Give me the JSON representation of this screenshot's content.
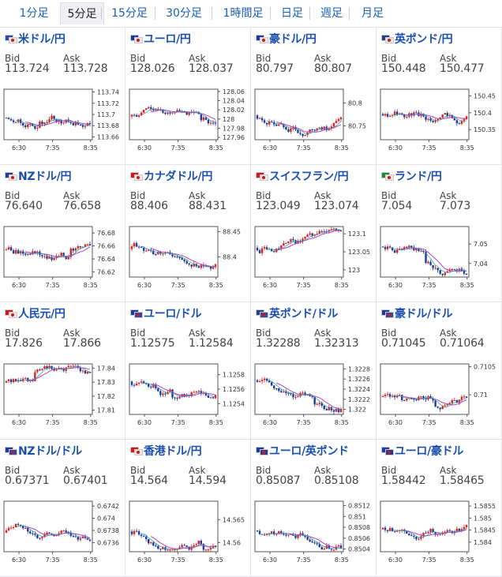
{
  "tabs": [
    {
      "label": "1分足",
      "active": false
    },
    {
      "label": "5分足",
      "active": true
    },
    {
      "label": "15分足",
      "active": false
    },
    {
      "label": "30分足",
      "active": false
    },
    {
      "label": "1時間足",
      "active": false
    },
    {
      "label": "日足",
      "active": false
    },
    {
      "label": "週足",
      "active": false
    },
    {
      "label": "月足",
      "active": false
    }
  ],
  "labels": {
    "bid": "Bid",
    "ask": "Ask"
  },
  "pairs": [
    {
      "name": "米ドル/円",
      "flags": [
        "#2c4aa8",
        "#e8e8e8"
      ],
      "bid": "113.724",
      "ask": "113.728",
      "chart_data": {
        "type": "candlestick",
        "x_ticks": [
          "6:30",
          "7:35",
          "8:35"
        ],
        "y_ticks": [
          "113.74",
          "113.72",
          "113.7",
          "113.68",
          "113.66"
        ],
        "ylim": [
          113.655,
          113.745
        ]
      }
    },
    {
      "name": "ユーロ/円",
      "flags": [
        "#1e3a9c",
        "#e8e8e8"
      ],
      "bid": "128.026",
      "ask": "128.037",
      "chart_data": {
        "type": "candlestick",
        "x_ticks": [
          "6:30",
          "7:35",
          "8:35"
        ],
        "y_ticks": [
          "128.06",
          "128.04",
          "128.02",
          "128",
          "127.98",
          "127.96"
        ],
        "ylim": [
          127.955,
          128.065
        ]
      }
    },
    {
      "name": "豪ドル/円",
      "flags": [
        "#1e3a9c",
        "#e8e8e8"
      ],
      "bid": "80.797",
      "ask": "80.807",
      "chart_data": {
        "type": "candlestick",
        "x_ticks": [
          "6:30",
          "7:35",
          "8:35"
        ],
        "y_ticks": [
          "80.8",
          "80.75"
        ],
        "ylim": [
          80.72,
          80.83
        ]
      }
    },
    {
      "name": "英ポンド/円",
      "flags": [
        "#2c3c8c",
        "#e8e8e8"
      ],
      "bid": "150.448",
      "ask": "150.477",
      "chart_data": {
        "type": "candlestick",
        "x_ticks": [
          "6:30",
          "7:35",
          "8:35"
        ],
        "y_ticks": [
          "150.45",
          "150.4",
          "150.35"
        ],
        "ylim": [
          150.32,
          150.47
        ]
      }
    },
    {
      "name": "NZドル/円",
      "flags": [
        "#1e3a9c",
        "#e8e8e8"
      ],
      "bid": "76.640",
      "ask": "76.658",
      "chart_data": {
        "type": "candlestick",
        "x_ticks": [
          "6:30",
          "7:35",
          "8:35"
        ],
        "y_ticks": [
          "76.68",
          "76.66",
          "76.64",
          "76.62"
        ],
        "ylim": [
          76.612,
          76.69
        ]
      }
    },
    {
      "name": "カナダドル/円",
      "flags": [
        "#d01818",
        "#e8e8e8"
      ],
      "bid": "88.406",
      "ask": "88.431",
      "chart_data": {
        "type": "candlestick",
        "x_ticks": [
          "6:30",
          "7:35",
          "8:35"
        ],
        "y_ticks": [
          "88.45",
          "88.4"
        ],
        "ylim": [
          88.36,
          88.46
        ]
      }
    },
    {
      "name": "スイスフラン/円",
      "flags": [
        "#d01818",
        "#e8e8e8"
      ],
      "bid": "123.049",
      "ask": "123.074",
      "chart_data": {
        "type": "candlestick",
        "x_ticks": [
          "6:30",
          "7:35",
          "8:35"
        ],
        "y_ticks": [
          "123.1",
          "123.05",
          "123"
        ],
        "ylim": [
          122.98,
          123.12
        ]
      }
    },
    {
      "name": "ランド/円",
      "flags": [
        "#1a8a3a",
        "#e8e8e8"
      ],
      "bid": "7.054",
      "ask": "7.073",
      "chart_data": {
        "type": "candlestick",
        "x_ticks": [
          "6:30",
          "7:35",
          "8:35"
        ],
        "y_ticks": [
          "7.05",
          "7.04"
        ],
        "ylim": [
          7.033,
          7.059
        ]
      }
    },
    {
      "name": "人民元/円",
      "flags": [
        "#d01818",
        "#e8e8e8"
      ],
      "bid": "17.826",
      "ask": "17.866",
      "chart_data": {
        "type": "candlestick",
        "x_ticks": [
          "6:30",
          "7:35",
          "8:35"
        ],
        "y_ticks": [
          "17.84",
          "17.83",
          "17.82",
          "17.81"
        ],
        "ylim": [
          17.807,
          17.843
        ]
      }
    },
    {
      "name": "ユーロ/ドル",
      "flags": [
        "#1e3a9c",
        "#2c4aa8"
      ],
      "bid": "1.12575",
      "ask": "1.12584",
      "chart_data": {
        "type": "candlestick",
        "x_ticks": [
          "6:30",
          "7:35",
          "8:35"
        ],
        "y_ticks": [
          "1.1258",
          "1.1256",
          "1.1254"
        ],
        "ylim": [
          1.12525,
          1.12595
        ]
      }
    },
    {
      "name": "英ポンド/ドル",
      "flags": [
        "#2c3c8c",
        "#2c4aa8"
      ],
      "bid": "1.32288",
      "ask": "1.32313",
      "chart_data": {
        "type": "candlestick",
        "x_ticks": [
          "6:30",
          "7:35",
          "8:35"
        ],
        "y_ticks": [
          "1.3228",
          "1.3226",
          "1.3224",
          "1.3222",
          "1.322"
        ],
        "ylim": [
          1.3219,
          1.3229
        ]
      }
    },
    {
      "name": "豪ドル/ドル",
      "flags": [
        "#1e3a9c",
        "#2c4aa8"
      ],
      "bid": "0.71045",
      "ask": "0.71064",
      "chart_data": {
        "type": "candlestick",
        "x_ticks": [
          "6:30",
          "7:35",
          "8:35"
        ],
        "y_ticks": [
          "0.7105",
          "0.71"
        ],
        "ylim": [
          0.70965,
          0.71055
        ]
      }
    },
    {
      "name": "NZドル/ドル",
      "flags": [
        "#1e3a9c",
        "#2c4aa8"
      ],
      "bid": "0.67371",
      "ask": "0.67401",
      "chart_data": {
        "type": "candlestick",
        "x_ticks": [
          "6:30",
          "7:35",
          "8:35"
        ],
        "y_ticks": [
          "0.6742",
          "0.674",
          "0.6738",
          "0.6736"
        ],
        "ylim": [
          0.67345,
          0.67428
        ]
      }
    },
    {
      "name": "香港ドル/円",
      "flags": [
        "#d01818",
        "#e8e8e8"
      ],
      "bid": "14.564",
      "ask": "14.594",
      "chart_data": {
        "type": "candlestick",
        "x_ticks": [
          "6:30",
          "7:35",
          "8:35"
        ],
        "y_ticks": [
          "14.565",
          "14.56"
        ],
        "ylim": [
          14.558,
          14.569
        ]
      }
    },
    {
      "name": "ユーロ/英ポンド",
      "flags": [
        "#1e3a9c",
        "#2c3c8c"
      ],
      "bid": "0.85087",
      "ask": "0.85108",
      "chart_data": {
        "type": "candlestick",
        "x_ticks": [
          "6:30",
          "7:35",
          "8:35"
        ],
        "y_ticks": [
          "0.8512",
          "0.851",
          "0.8508",
          "0.8506",
          "0.8504"
        ],
        "ylim": [
          0.85035,
          0.85128
        ]
      }
    },
    {
      "name": "ユーロ/豪ドル",
      "flags": [
        "#1e3a9c",
        "#1e3a9c"
      ],
      "bid": "1.58442",
      "ask": "1.58465",
      "chart_data": {
        "type": "candlestick",
        "x_ticks": [
          "6:30",
          "7:35",
          "8:35"
        ],
        "y_ticks": [
          "1.5855",
          "1.585",
          "1.5845",
          "1.584"
        ],
        "ylim": [
          1.5836,
          1.5857
        ]
      }
    }
  ],
  "colors": {
    "up": "#e02020",
    "down": "#1f3a9c",
    "ma": "#c040c0",
    "ma2": "#20a0a0",
    "title": "#1a4fb0",
    "tab": "#1a5fb4"
  }
}
